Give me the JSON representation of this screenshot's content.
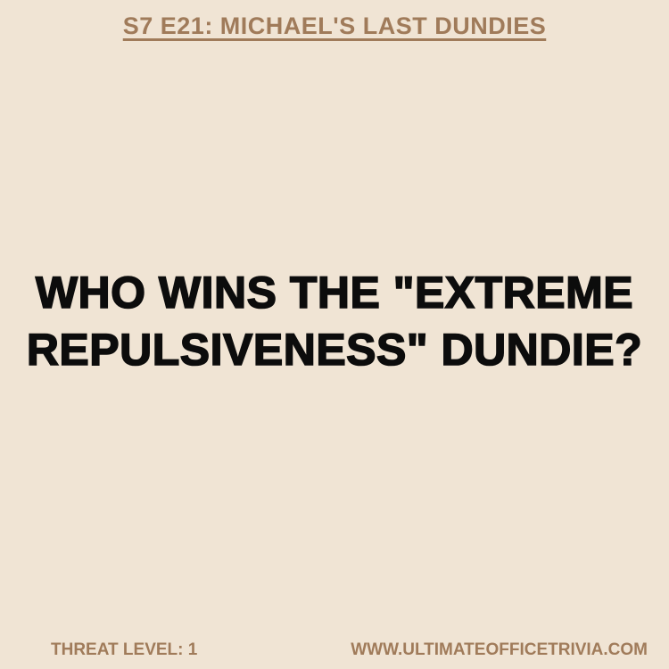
{
  "header": {
    "episode_title": "S7 E21: MICHAEL'S LAST DUNDIES"
  },
  "question": {
    "lines": [
      "WHO WINS THE \"EXTREME",
      "REPULSIVENESS\" DUNDIE?"
    ]
  },
  "footer": {
    "threat_level": "THREAT LEVEL: 1",
    "website": "WWW.ULTIMATEOFFICETRIVIA.COM"
  },
  "colors": {
    "background": "#f0e4d4",
    "accent": "#a07b5a",
    "question_text": "#0c0c0c"
  }
}
